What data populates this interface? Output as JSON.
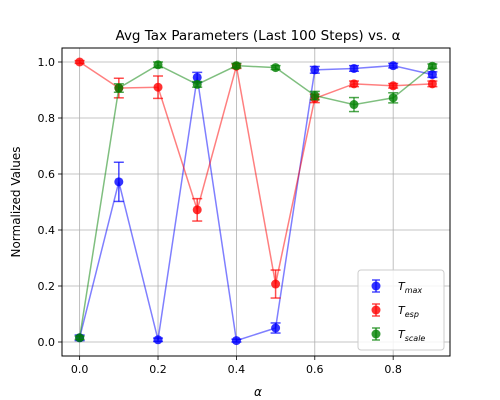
{
  "chart_data": {
    "type": "line",
    "title": "Avg Tax Parameters (Last 100 Steps) vs. α",
    "xlabel": "α",
    "ylabel": "Normalized Values",
    "xlim": [
      -0.045,
      0.945
    ],
    "ylim": [
      -0.05,
      1.05
    ],
    "x_ticks": [
      0.0,
      0.2,
      0.4,
      0.6,
      0.8
    ],
    "y_ticks": [
      0.0,
      0.2,
      0.4,
      0.6,
      0.8,
      1.0
    ],
    "x_tick_labels": [
      "0.0",
      "0.2",
      "0.4",
      "0.6",
      "0.8"
    ],
    "y_tick_labels": [
      "0.0",
      "0.2",
      "0.4",
      "0.6",
      "0.8",
      "1.0"
    ],
    "grid": true,
    "legend_position": "lower-right",
    "x": [
      0.0,
      0.1,
      0.2,
      0.3,
      0.4,
      0.5,
      0.6,
      0.7,
      0.8,
      0.9
    ],
    "series": [
      {
        "name": "T_max",
        "label_main": "T",
        "label_sub": "max",
        "color": "#0000ff",
        "values": [
          0.015,
          0.572,
          0.008,
          0.945,
          0.005,
          0.05,
          0.972,
          0.977,
          0.987,
          0.955
        ],
        "errors": [
          0.01,
          0.07,
          0.006,
          0.018,
          0.005,
          0.018,
          0.012,
          0.01,
          0.008,
          0.01
        ]
      },
      {
        "name": "T_esp",
        "label_main": "T",
        "label_sub": "esp",
        "color": "#ff0000",
        "values": [
          1.0,
          0.907,
          0.91,
          0.472,
          0.985,
          0.207,
          0.87,
          0.922,
          0.915,
          0.922
        ],
        "errors": [
          0.005,
          0.035,
          0.04,
          0.04,
          0.008,
          0.05,
          0.015,
          0.01,
          0.008,
          0.01
        ]
      },
      {
        "name": "T_scale",
        "label_main": "T",
        "label_sub": "scale",
        "color": "#008000",
        "values": [
          0.015,
          0.907,
          0.99,
          0.92,
          0.987,
          0.98,
          0.88,
          0.848,
          0.872,
          0.985
        ],
        "errors": [
          0.006,
          0.015,
          0.01,
          0.01,
          0.008,
          0.007,
          0.015,
          0.025,
          0.018,
          0.008
        ]
      }
    ]
  }
}
